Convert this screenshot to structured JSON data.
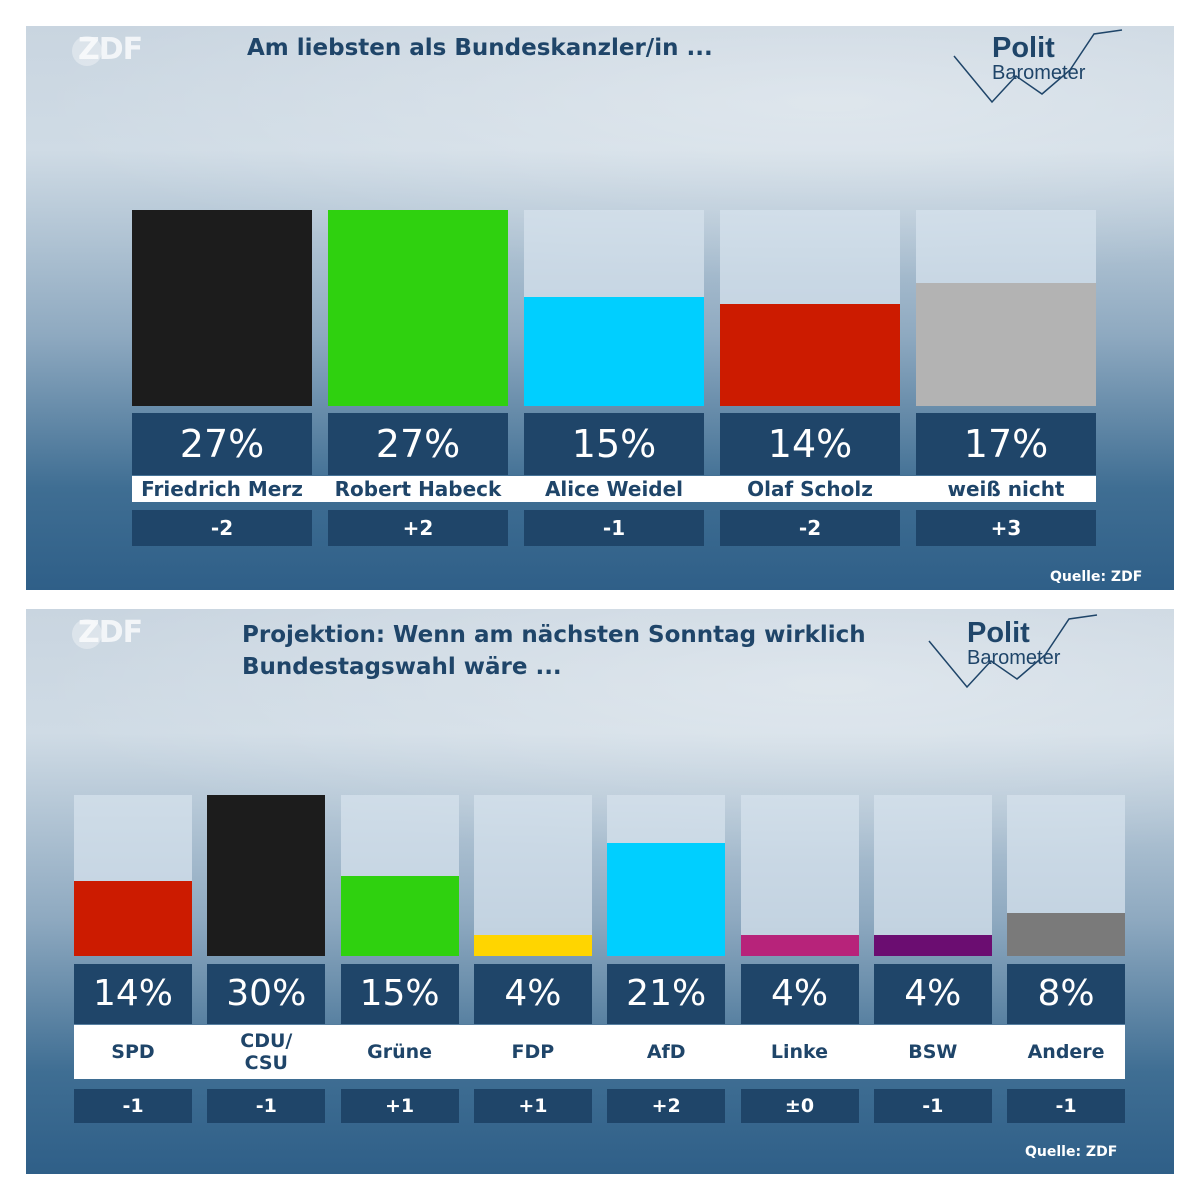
{
  "panels": [
    {
      "broadcaster": "ZDF",
      "title_lines": [
        "Am liebsten als Bundeskanzler/in ..."
      ],
      "logo": {
        "line1": "Polit",
        "line2": "Barometer"
      },
      "source": "Quelle: ZDF",
      "colors": {
        "box": "#1f4569",
        "track": "#d6e2ec"
      }
    },
    {
      "broadcaster": "ZDF",
      "title_lines": [
        "Projektion: Wenn am nächsten Sonntag wirklich",
        "Bundestagswahl wäre ..."
      ],
      "logo": {
        "line1": "Polit",
        "line2": "Barometer"
      },
      "source": "Quelle: ZDF",
      "colors": {
        "box": "#1f4569",
        "track": "#d6e2ec"
      }
    }
  ],
  "chart_data": [
    {
      "type": "bar",
      "title": "Am liebsten als Bundeskanzler/in ...",
      "categories": [
        "Friedrich Merz",
        "Robert Habeck",
        "Alice Weidel",
        "Olaf Scholz",
        "weiß nicht"
      ],
      "values": [
        27,
        27,
        15,
        14,
        17
      ],
      "value_labels": [
        "27%",
        "27%",
        "15%",
        "14%",
        "17%"
      ],
      "changes": [
        "-2",
        "+2",
        "-1",
        "-2",
        "+3"
      ],
      "colors": [
        "#1c1c1c",
        "#2fd10f",
        "#00cfff",
        "#cc1b00",
        "#b3b3b3"
      ],
      "ylim": [
        0,
        27
      ],
      "grid": false
    },
    {
      "type": "bar",
      "title": "Projektion: Wenn am nächsten Sonntag wirklich Bundestagswahl wäre ...",
      "categories": [
        "SPD",
        "CDU/\nCSU",
        "Grüne",
        "FDP",
        "AfD",
        "Linke",
        "BSW",
        "Andere"
      ],
      "values": [
        14,
        30,
        15,
        4,
        21,
        4,
        4,
        8
      ],
      "value_labels": [
        "14%",
        "30%",
        "15%",
        "4%",
        "21%",
        "4%",
        "4%",
        "8%"
      ],
      "changes": [
        "-1",
        "-1",
        "+1",
        "+1",
        "+2",
        "±0",
        "-1",
        "-1"
      ],
      "colors": [
        "#cc1b00",
        "#1c1c1c",
        "#2fd10f",
        "#ffd500",
        "#00cfff",
        "#b7237a",
        "#6b0d71",
        "#7a7a7a"
      ],
      "ylim": [
        0,
        30
      ],
      "grid": false
    }
  ]
}
